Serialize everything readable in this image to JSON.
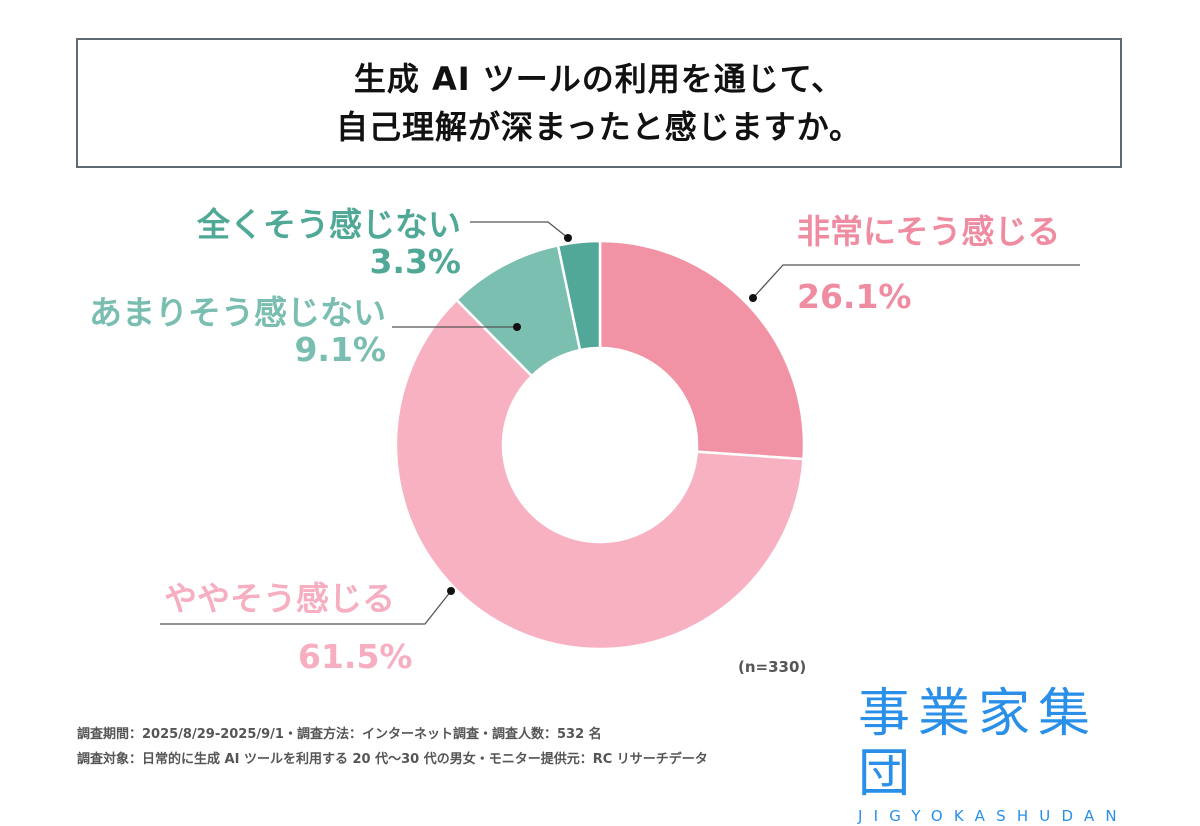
{
  "title": {
    "line1": "生成 AI ツールの利用を通じて、",
    "line2": "自己理解が深まったと感じますか。"
  },
  "chart_data": {
    "type": "pie",
    "variant": "donut",
    "title": "生成 AI ツールの利用を通じて、自己理解が深まったと感じますか。",
    "start": "top",
    "direction": "clockwise",
    "slices": [
      {
        "label": "非常にそう感じる",
        "value": 26.1,
        "display": "26.1%",
        "color": "#f293a5"
      },
      {
        "label": "ややそう感じる",
        "value": 61.5,
        "display": "61.5%",
        "color": "#f8b1c1"
      },
      {
        "label": "あまりそう感じない",
        "value": 9.1,
        "display": "9.1%",
        "color": "#7bbfb1"
      },
      {
        "label": "全くそう感じない",
        "value": 3.3,
        "display": "3.3%",
        "color": "#52a898"
      }
    ],
    "sample_size": "(n=330)"
  },
  "footer": {
    "line1": "調査期間：2025/8/29-2025/9/1・調査方法：インターネット調査・調査人数：532 名",
    "line2": "調査対象：日常的に生成 AI ツールを利用する 20 代〜30 代の男女・モニター提供元：RC リサーチデータ"
  },
  "logo": {
    "kanji": "事業家集団",
    "roman": "JIGYOKASHUDAN"
  }
}
